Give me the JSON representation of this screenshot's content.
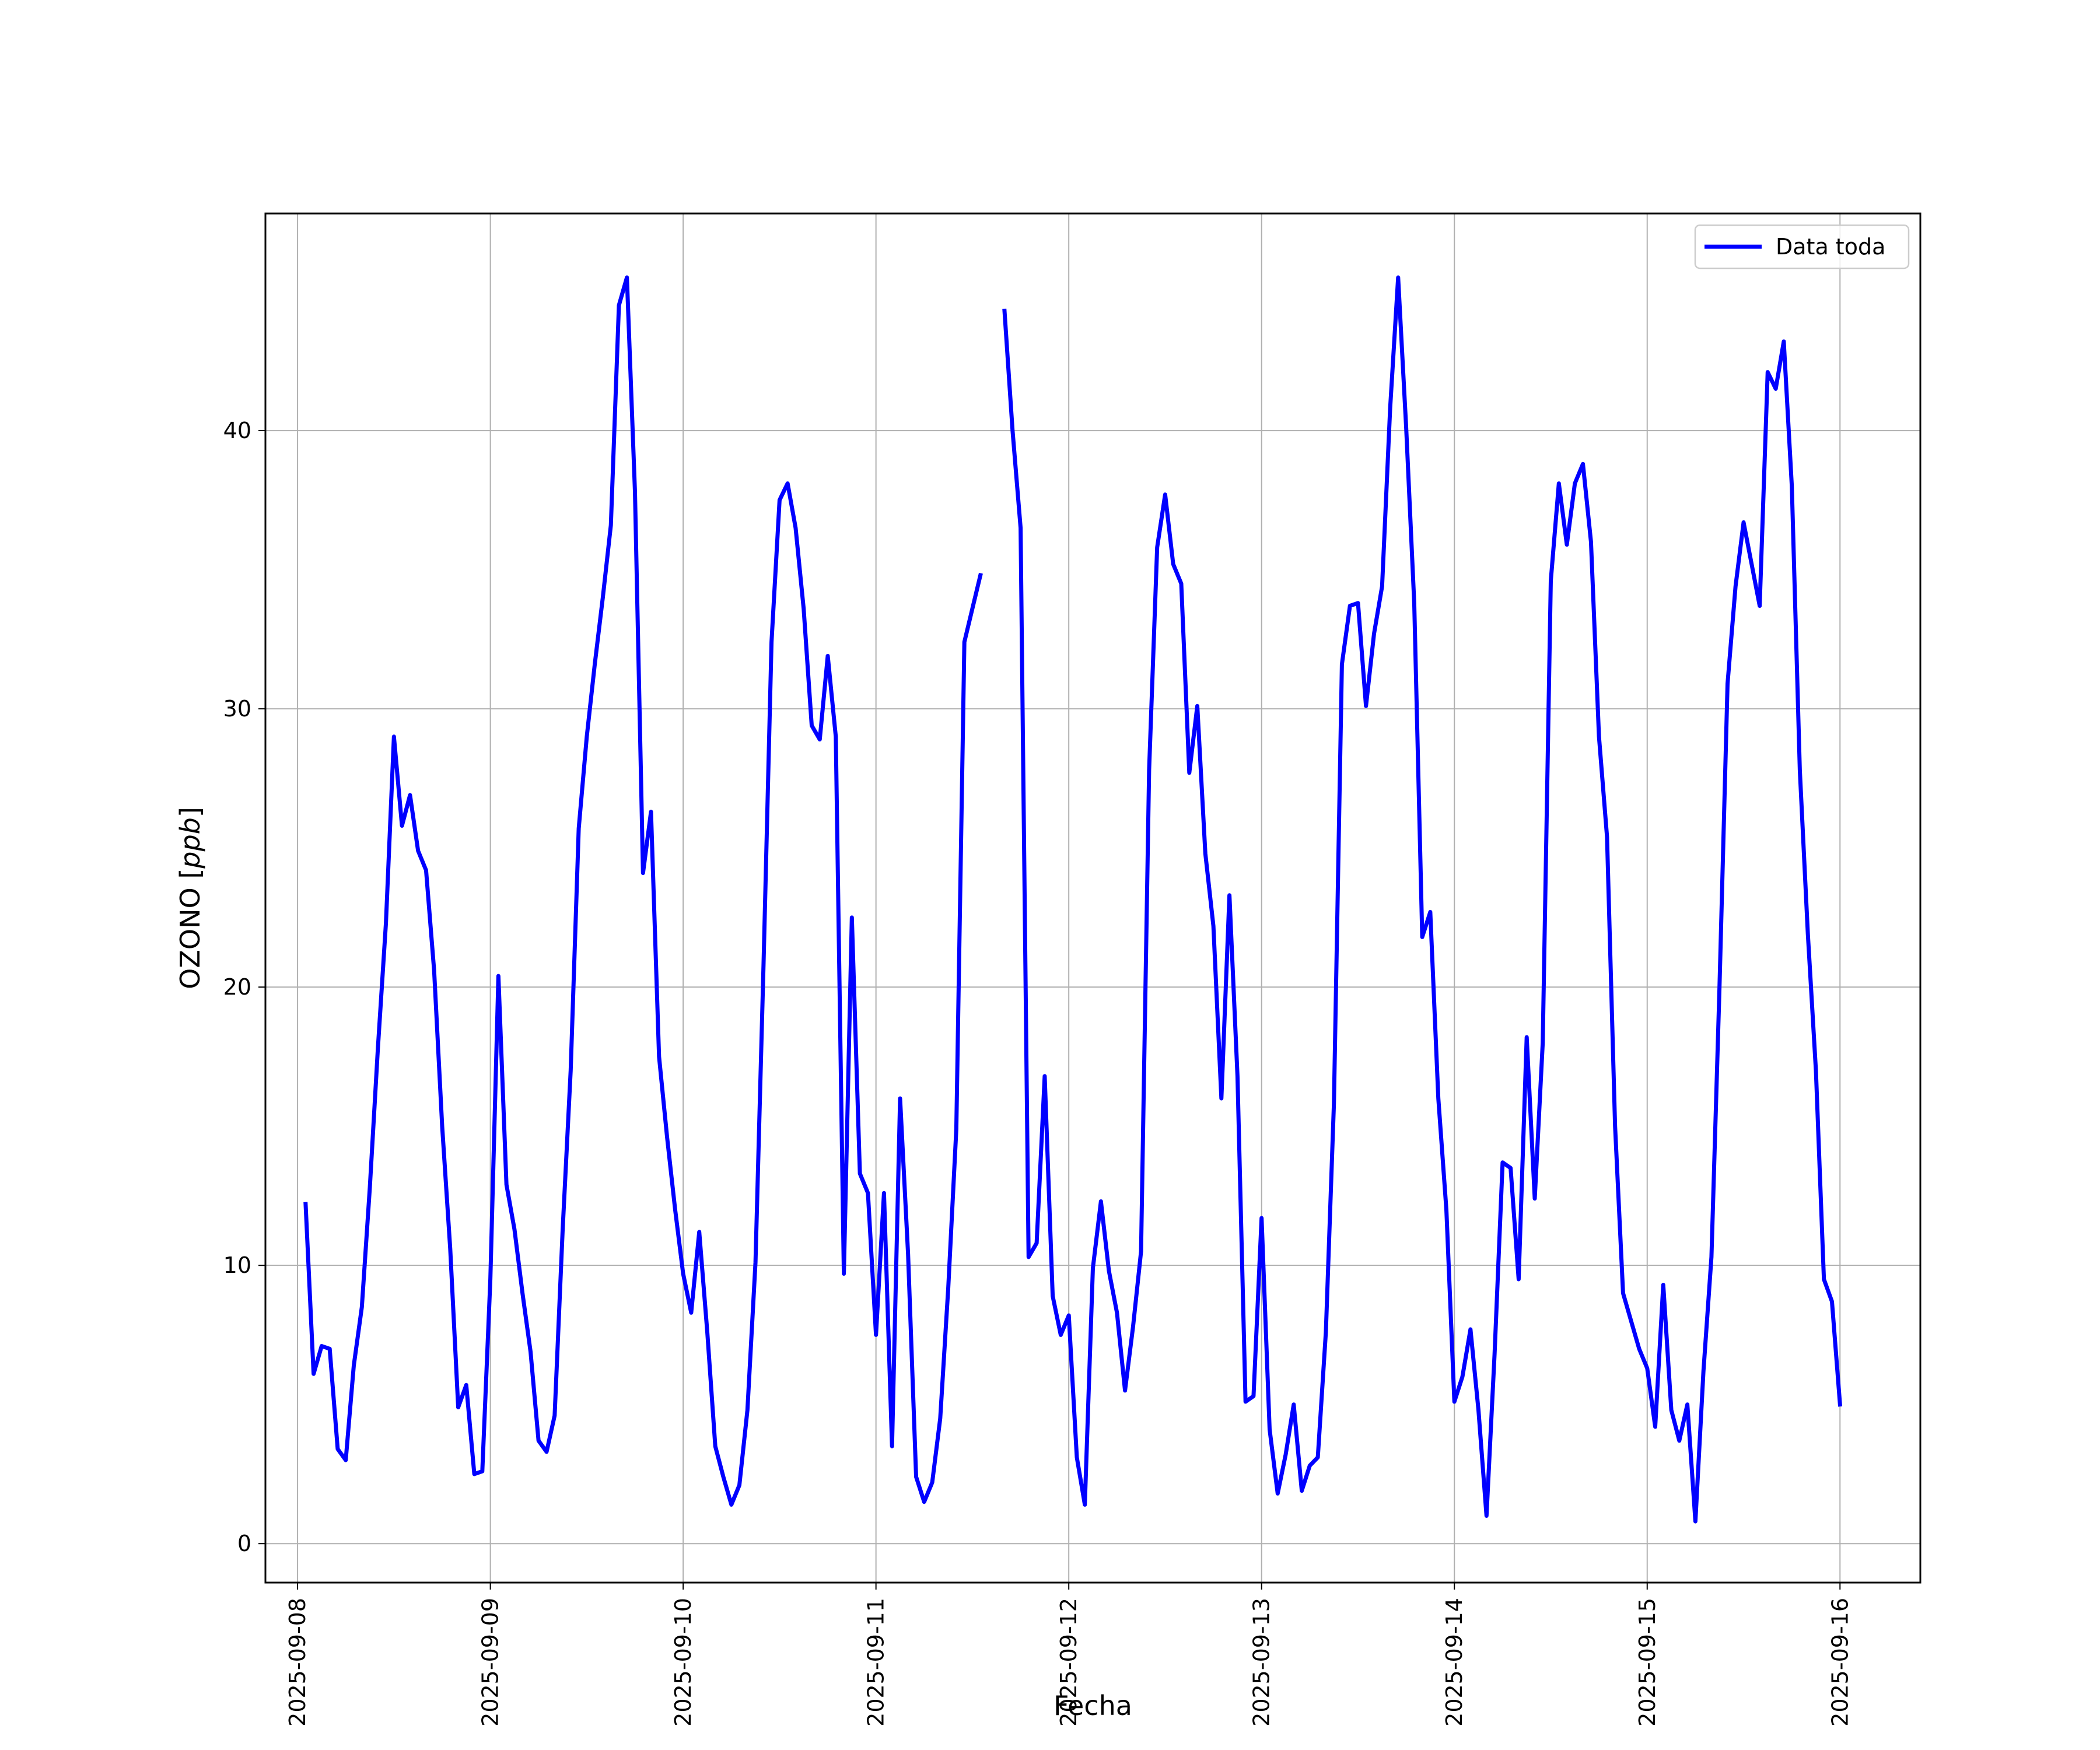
{
  "chart_data": {
    "type": "line",
    "xlabel": "Fecha",
    "ylabel_prefix": "OZONO [",
    "ylabel_unit": "ppb",
    "ylabel_suffix": "]",
    "xlim": [
      "2025-09-07 20:00",
      "2025-09-16 10:00"
    ],
    "ylim": [
      -1.4,
      47.8
    ],
    "x_ticks": [
      "2025-09-08",
      "2025-09-09",
      "2025-09-10",
      "2025-09-11",
      "2025-09-12",
      "2025-09-13",
      "2025-09-14",
      "2025-09-15",
      "2025-09-16"
    ],
    "y_ticks": [
      0,
      10,
      20,
      30,
      40
    ],
    "grid": true,
    "legend_position": "upper-right",
    "series": [
      {
        "name": "Data toda",
        "color": "#0000ff",
        "points": [
          [
            "2025-09-08 01:00",
            12.2
          ],
          [
            "2025-09-08 02:00",
            6.1
          ],
          [
            "2025-09-08 03:00",
            7.1
          ],
          [
            "2025-09-08 04:00",
            7.0
          ],
          [
            "2025-09-08 05:00",
            3.4
          ],
          [
            "2025-09-08 06:00",
            3.0
          ],
          [
            "2025-09-08 07:00",
            6.4
          ],
          [
            "2025-09-08 08:00",
            8.5
          ],
          [
            "2025-09-08 09:00",
            12.8
          ],
          [
            "2025-09-08 10:00",
            17.8
          ],
          [
            "2025-09-08 11:00",
            22.3
          ],
          [
            "2025-09-08 12:00",
            29.0
          ],
          [
            "2025-09-08 13:00",
            25.8
          ],
          [
            "2025-09-08 14:00",
            26.9
          ],
          [
            "2025-09-08 15:00",
            24.9
          ],
          [
            "2025-09-08 16:00",
            24.2
          ],
          [
            "2025-09-08 17:00",
            20.6
          ],
          [
            "2025-09-08 18:00",
            15.0
          ],
          [
            "2025-09-08 19:00",
            10.6
          ],
          [
            "2025-09-08 20:00",
            4.9
          ],
          [
            "2025-09-08 21:00",
            5.7
          ],
          [
            "2025-09-08 22:00",
            2.5
          ],
          [
            "2025-09-08 23:00",
            2.6
          ],
          [
            "2025-09-09 00:00",
            9.5
          ],
          [
            "2025-09-09 01:00",
            20.4
          ],
          [
            "2025-09-09 02:00",
            12.9
          ],
          [
            "2025-09-09 03:00",
            11.3
          ],
          [
            "2025-09-09 04:00",
            9.0
          ],
          [
            "2025-09-09 05:00",
            6.9
          ],
          [
            "2025-09-09 06:00",
            3.7
          ],
          [
            "2025-09-09 07:00",
            3.3
          ],
          [
            "2025-09-09 08:00",
            4.6
          ],
          [
            "2025-09-09 09:00",
            11.3
          ],
          [
            "2025-09-09 10:00",
            17.0
          ],
          [
            "2025-09-09 11:00",
            25.7
          ],
          [
            "2025-09-09 12:00",
            29.0
          ],
          [
            "2025-09-09 13:00",
            31.6
          ],
          [
            "2025-09-09 14:00",
            34.0
          ],
          [
            "2025-09-09 15:00",
            36.6
          ],
          [
            "2025-09-09 16:00",
            44.5
          ],
          [
            "2025-09-09 17:00",
            45.5
          ],
          [
            "2025-09-09 18:00",
            37.8
          ],
          [
            "2025-09-09 19:00",
            24.1
          ],
          [
            "2025-09-09 20:00",
            26.3
          ],
          [
            "2025-09-09 21:00",
            17.5
          ],
          [
            "2025-09-09 22:00",
            14.6
          ],
          [
            "2025-09-09 23:00",
            12.0
          ],
          [
            "2025-09-10 00:00",
            9.7
          ],
          [
            "2025-09-10 01:00",
            8.3
          ],
          [
            "2025-09-10 02:00",
            11.2
          ],
          [
            "2025-09-10 03:00",
            7.6
          ],
          [
            "2025-09-10 04:00",
            3.5
          ],
          [
            "2025-09-10 05:00",
            2.4
          ],
          [
            "2025-09-10 06:00",
            1.4
          ],
          [
            "2025-09-10 07:00",
            2.1
          ],
          [
            "2025-09-10 08:00",
            4.8
          ],
          [
            "2025-09-10 09:00",
            10.1
          ],
          [
            "2025-09-10 10:00",
            20.8
          ],
          [
            "2025-09-10 11:00",
            32.4
          ],
          [
            "2025-09-10 12:00",
            37.5
          ],
          [
            "2025-09-10 13:00",
            38.1
          ],
          [
            "2025-09-10 14:00",
            36.5
          ],
          [
            "2025-09-10 15:00",
            33.6
          ],
          [
            "2025-09-10 16:00",
            29.4
          ],
          [
            "2025-09-10 17:00",
            28.9
          ],
          [
            "2025-09-10 18:00",
            31.9
          ],
          [
            "2025-09-10 19:00",
            29.0
          ],
          [
            "2025-09-10 20:00",
            9.7
          ],
          [
            "2025-09-10 21:00",
            22.5
          ],
          [
            "2025-09-10 22:00",
            13.3
          ],
          [
            "2025-09-10 23:00",
            12.6
          ],
          [
            "2025-09-11 00:00",
            7.5
          ],
          [
            "2025-09-11 01:00",
            12.6
          ],
          [
            "2025-09-11 02:00",
            3.5
          ],
          [
            "2025-09-11 03:00",
            16.0
          ],
          [
            "2025-09-11 04:00",
            10.4
          ],
          [
            "2025-09-11 05:00",
            2.4
          ],
          [
            "2025-09-11 06:00",
            1.5
          ],
          [
            "2025-09-11 07:00",
            2.2
          ],
          [
            "2025-09-11 08:00",
            4.5
          ],
          [
            "2025-09-11 09:00",
            9.2
          ],
          [
            "2025-09-11 10:00",
            14.9
          ],
          [
            "2025-09-11 11:00",
            32.4
          ],
          [
            "2025-09-11 12:00",
            33.6
          ],
          [
            "2025-09-11 13:00",
            34.8
          ],
          null,
          [
            "2025-09-11 16:00",
            44.3
          ],
          [
            "2025-09-11 17:00",
            40.0
          ],
          [
            "2025-09-11 18:00",
            36.5
          ],
          [
            "2025-09-11 19:00",
            10.3
          ],
          [
            "2025-09-11 20:00",
            10.8
          ],
          [
            "2025-09-11 21:00",
            16.8
          ],
          [
            "2025-09-11 22:00",
            8.9
          ],
          [
            "2025-09-11 23:00",
            7.5
          ],
          [
            "2025-09-12 00:00",
            8.2
          ],
          [
            "2025-09-12 01:00",
            3.1
          ],
          [
            "2025-09-12 02:00",
            1.4
          ],
          [
            "2025-09-12 03:00",
            9.9
          ],
          [
            "2025-09-12 04:00",
            12.3
          ],
          [
            "2025-09-12 05:00",
            9.8
          ],
          [
            "2025-09-12 06:00",
            8.3
          ],
          [
            "2025-09-12 07:00",
            5.5
          ],
          [
            "2025-09-12 08:00",
            7.8
          ],
          [
            "2025-09-12 09:00",
            10.5
          ],
          [
            "2025-09-12 10:00",
            27.8
          ],
          [
            "2025-09-12 11:00",
            35.8
          ],
          [
            "2025-09-12 12:00",
            37.7
          ],
          [
            "2025-09-12 13:00",
            35.2
          ],
          [
            "2025-09-12 14:00",
            34.5
          ],
          [
            "2025-09-12 15:00",
            27.7
          ],
          [
            "2025-09-12 16:00",
            30.1
          ],
          [
            "2025-09-12 17:00",
            24.8
          ],
          [
            "2025-09-12 18:00",
            22.2
          ],
          [
            "2025-09-12 19:00",
            16.0
          ],
          [
            "2025-09-12 20:00",
            23.3
          ],
          [
            "2025-09-12 21:00",
            16.8
          ],
          [
            "2025-09-12 22:00",
            5.1
          ],
          [
            "2025-09-12 23:00",
            5.3
          ],
          [
            "2025-09-13 00:00",
            11.7
          ],
          [
            "2025-09-13 01:00",
            4.1
          ],
          [
            "2025-09-13 02:00",
            1.8
          ],
          [
            "2025-09-13 03:00",
            3.2
          ],
          [
            "2025-09-13 04:00",
            5.0
          ],
          [
            "2025-09-13 05:00",
            1.9
          ],
          [
            "2025-09-13 06:00",
            2.8
          ],
          [
            "2025-09-13 07:00",
            3.1
          ],
          [
            "2025-09-13 08:00",
            7.6
          ],
          [
            "2025-09-13 09:00",
            15.8
          ],
          [
            "2025-09-13 10:00",
            31.6
          ],
          [
            "2025-09-13 11:00",
            33.7
          ],
          [
            "2025-09-13 12:00",
            33.8
          ],
          [
            "2025-09-13 13:00",
            30.1
          ],
          [
            "2025-09-13 14:00",
            32.7
          ],
          [
            "2025-09-13 15:00",
            34.4
          ],
          [
            "2025-09-13 16:00",
            40.8
          ],
          [
            "2025-09-13 17:00",
            45.5
          ],
          [
            "2025-09-13 18:00",
            40.1
          ],
          [
            "2025-09-13 19:00",
            33.8
          ],
          [
            "2025-09-13 20:00",
            21.8
          ],
          [
            "2025-09-13 21:00",
            22.7
          ],
          [
            "2025-09-13 22:00",
            16.0
          ],
          [
            "2025-09-13 23:00",
            12.0
          ],
          [
            "2025-09-14 00:00",
            5.1
          ],
          [
            "2025-09-14 01:00",
            6.0
          ],
          [
            "2025-09-14 02:00",
            7.7
          ],
          [
            "2025-09-14 03:00",
            4.8
          ],
          [
            "2025-09-14 04:00",
            1.0
          ],
          [
            "2025-09-14 05:00",
            6.8
          ],
          [
            "2025-09-14 06:00",
            13.7
          ],
          [
            "2025-09-14 07:00",
            13.5
          ],
          [
            "2025-09-14 08:00",
            9.5
          ],
          [
            "2025-09-14 09:00",
            18.2
          ],
          [
            "2025-09-14 10:00",
            12.4
          ],
          [
            "2025-09-14 11:00",
            18.0
          ],
          [
            "2025-09-14 12:00",
            34.6
          ],
          [
            "2025-09-14 13:00",
            38.1
          ],
          [
            "2025-09-14 14:00",
            35.9
          ],
          [
            "2025-09-14 15:00",
            38.1
          ],
          [
            "2025-09-14 16:00",
            38.8
          ],
          [
            "2025-09-14 17:00",
            36.0
          ],
          [
            "2025-09-14 18:00",
            29.0
          ],
          [
            "2025-09-14 19:00",
            25.4
          ],
          [
            "2025-09-14 20:00",
            15.0
          ],
          [
            "2025-09-14 21:00",
            9.0
          ],
          [
            "2025-09-14 22:00",
            8.0
          ],
          [
            "2025-09-14 23:00",
            7.0
          ],
          [
            "2025-09-15 00:00",
            6.3
          ],
          [
            "2025-09-15 01:00",
            4.2
          ],
          [
            "2025-09-15 02:00",
            9.3
          ],
          [
            "2025-09-15 03:00",
            4.8
          ],
          [
            "2025-09-15 04:00",
            3.7
          ],
          [
            "2025-09-15 05:00",
            5.0
          ],
          [
            "2025-09-15 06:00",
            0.8
          ],
          [
            "2025-09-15 07:00",
            6.2
          ],
          [
            "2025-09-15 08:00",
            10.3
          ],
          [
            "2025-09-15 09:00",
            20.0
          ],
          [
            "2025-09-15 10:00",
            30.9
          ],
          [
            "2025-09-15 11:00",
            34.4
          ],
          [
            "2025-09-15 12:00",
            36.7
          ],
          [
            "2025-09-15 13:00",
            35.2
          ],
          [
            "2025-09-15 14:00",
            33.7
          ],
          [
            "2025-09-15 15:00",
            42.1
          ],
          [
            "2025-09-15 16:00",
            41.5
          ],
          [
            "2025-09-15 17:00",
            43.2
          ],
          [
            "2025-09-15 18:00",
            38.0
          ],
          [
            "2025-09-15 19:00",
            27.8
          ],
          [
            "2025-09-15 20:00",
            21.9
          ],
          [
            "2025-09-15 21:00",
            17.0
          ],
          [
            "2025-09-15 22:00",
            9.5
          ],
          [
            "2025-09-15 23:00",
            8.7
          ],
          [
            "2025-09-16 00:00",
            5.0
          ]
        ]
      }
    ]
  }
}
